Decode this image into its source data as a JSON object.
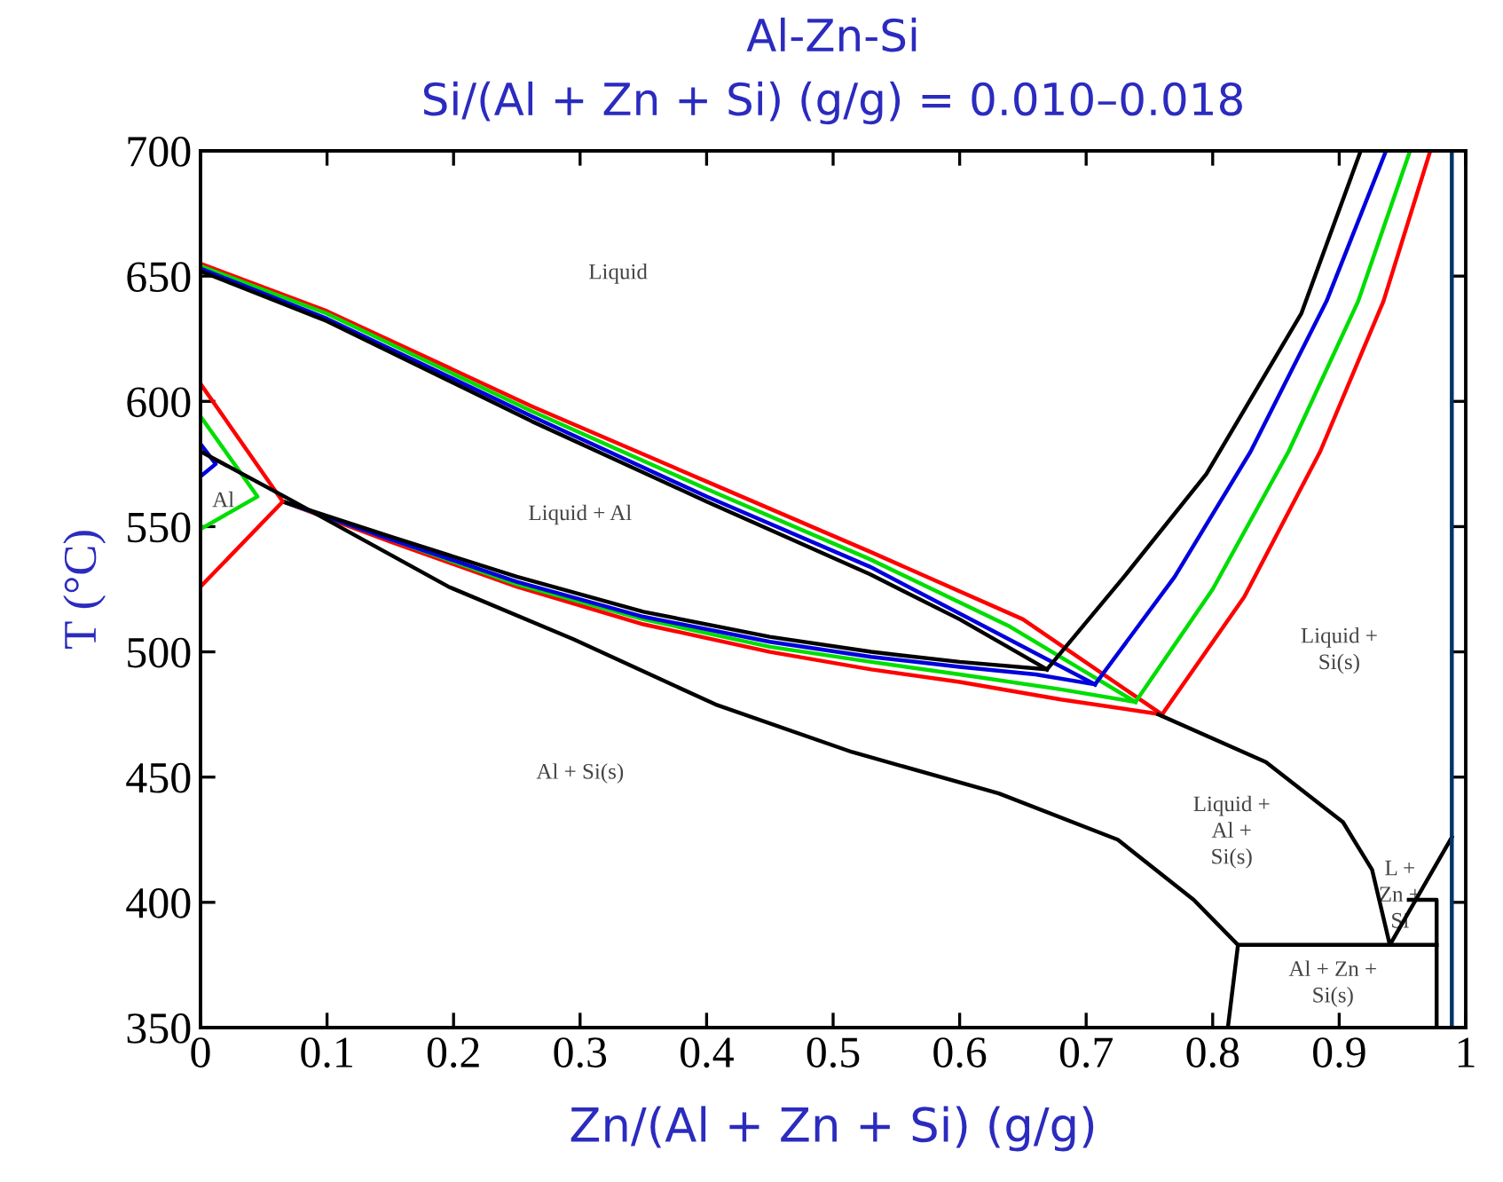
{
  "chart_data": {
    "type": "line",
    "title": "Al-Zn-Si",
    "subtitle": "Si/(Al + Zn + Si) (g/g) = 0.010–0.018",
    "xlabel": "Zn/(Al + Zn + Si) (g/g)",
    "ylabel": "T (°C)",
    "xlim": [
      0,
      1
    ],
    "ylim": [
      350,
      700
    ],
    "xticks": [
      0,
      0.1,
      0.2,
      0.3,
      0.4,
      0.5,
      0.6,
      0.7,
      0.8,
      0.9,
      1
    ],
    "yticks": [
      350,
      400,
      450,
      500,
      550,
      600,
      650,
      700
    ],
    "grid": false,
    "marker": "none",
    "line_style": "solid",
    "series": [
      {
        "color": "#ff0000",
        "x": [
          0,
          0.1,
          0.262,
          0.4,
          0.529,
          0.65,
          0.76
        ],
        "values": [
          655,
          636,
          598,
          568,
          540,
          513,
          475
        ]
      },
      {
        "color": "#00dd00",
        "x": [
          0,
          0.1,
          0.262,
          0.4,
          0.529,
          0.64,
          0.739
        ],
        "values": [
          654,
          635,
          596,
          565,
          537,
          510,
          480
        ]
      },
      {
        "color": "#0000dd",
        "x": [
          0,
          0.1,
          0.262,
          0.4,
          0.529,
          0.62,
          0.707
        ],
        "values": [
          653,
          633,
          594,
          562,
          534,
          510,
          487
        ]
      },
      {
        "color": "#000000",
        "x": [
          0,
          0.1,
          0.262,
          0.4,
          0.529,
          0.6,
          0.669
        ],
        "values": [
          652,
          632,
          592,
          560,
          531,
          513,
          493
        ]
      },
      {
        "color": "#ff0000",
        "x": [
          0.065,
          0.15,
          0.25,
          0.35,
          0.45,
          0.53,
          0.6,
          0.68,
          0.76
        ],
        "values": [
          560,
          544,
          526,
          511,
          500,
          493,
          488,
          481,
          475
        ]
      },
      {
        "color": "#00dd00",
        "x": [
          0.065,
          0.15,
          0.25,
          0.35,
          0.45,
          0.53,
          0.6,
          0.68,
          0.739
        ],
        "values": [
          560,
          545,
          527,
          513,
          502,
          496,
          491,
          485,
          480
        ]
      },
      {
        "color": "#0000dd",
        "x": [
          0.065,
          0.15,
          0.25,
          0.35,
          0.45,
          0.53,
          0.6,
          0.66,
          0.707
        ],
        "values": [
          560,
          545,
          528,
          514,
          504,
          498,
          494,
          491,
          487
        ]
      },
      {
        "color": "#000000",
        "x": [
          0.065,
          0.15,
          0.25,
          0.35,
          0.45,
          0.53,
          0.6,
          0.669
        ],
        "values": [
          560,
          546,
          530,
          516,
          506,
          500,
          496,
          493
        ]
      },
      {
        "color": "#000000",
        "x": [
          0.669,
          0.73,
          0.795,
          0.87,
          0.917
        ],
        "values": [
          493,
          530,
          571,
          635,
          700
        ]
      },
      {
        "color": "#0000dd",
        "x": [
          0.707,
          0.77,
          0.83,
          0.89,
          0.937
        ],
        "values": [
          487,
          530,
          580,
          640,
          700
        ]
      },
      {
        "color": "#00dd00",
        "x": [
          0.739,
          0.8,
          0.86,
          0.915,
          0.956
        ],
        "values": [
          480,
          525,
          580,
          640,
          700
        ]
      },
      {
        "color": "#ff0000",
        "x": [
          0.76,
          0.825,
          0.885,
          0.935,
          0.972
        ],
        "values": [
          475,
          522,
          580,
          640,
          700
        ]
      },
      {
        "color": "#ff0000",
        "x": [
          0,
          0.065,
          0
        ],
        "values": [
          607,
          560,
          526
        ]
      },
      {
        "color": "#00dd00",
        "x": [
          0,
          0.045,
          0
        ],
        "values": [
          594,
          562,
          549
        ]
      },
      {
        "color": "#0000dd",
        "x": [
          0,
          0.012,
          0
        ],
        "values": [
          583,
          575,
          570
        ]
      },
      {
        "color": "#000000",
        "x": [
          0,
          0.07,
          0.196,
          0.295,
          0.407,
          0.515,
          0.631,
          0.725,
          0.785,
          0.82,
          0.812
        ],
        "values": [
          580,
          561,
          526,
          505,
          479,
          460,
          443.5,
          425,
          401,
          383,
          350
        ]
      },
      {
        "color": "#000000",
        "x": [
          0.82,
          0.977
        ],
        "values": [
          383,
          383
        ]
      },
      {
        "color": "#000000",
        "x": [
          0.757,
          0.842,
          0.903,
          0.926,
          0.94,
          0.989
        ],
        "values": [
          475,
          456,
          432,
          413,
          383,
          426
        ]
      },
      {
        "color": "#000000",
        "x": [
          0.955,
          0.977,
          0.977
        ],
        "values": [
          401,
          401,
          350
        ]
      },
      {
        "color": "#003366",
        "x": [
          0.989,
          0.989
        ],
        "values": [
          350,
          700
        ]
      }
    ],
    "annotations": [
      "Liquid",
      "Liquid + Al",
      "Al",
      "Al + Si(s)",
      "Liquid +\nSi(s)",
      "Liquid +\nAl +\nSi(s)",
      "L +\nZn +\nSi",
      "Al + Zn +\nSi(s)"
    ]
  }
}
